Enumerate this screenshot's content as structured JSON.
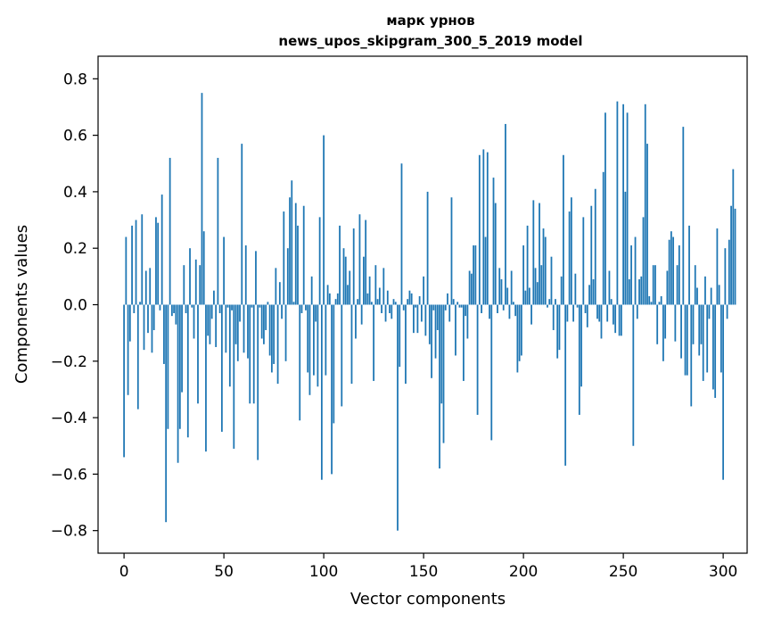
{
  "chart_data": {
    "type": "bar",
    "title_line1": "марк урнов",
    "title_line2": "news_upos_skipgram_300_5_2019 model",
    "xlabel": "Vector components",
    "ylabel": "Components values",
    "xlim": [
      -13,
      312
    ],
    "ylim": [
      -0.88,
      0.88
    ],
    "xticks": [
      0,
      50,
      100,
      150,
      200,
      250,
      300
    ],
    "yticks": [
      -0.8,
      -0.6,
      -0.4,
      -0.2,
      0.0,
      0.2,
      0.4,
      0.6,
      0.8
    ],
    "ytick_labels": [
      "−0.8",
      "−0.6",
      "−0.4",
      "−0.2",
      "0.0",
      "0.2",
      "0.4",
      "0.6",
      "0.8"
    ],
    "bar_color": "#1f77b4",
    "values": [
      -0.54,
      0.24,
      -0.32,
      -0.13,
      0.28,
      -0.03,
      0.3,
      -0.37,
      0.01,
      0.32,
      -0.16,
      0.12,
      -0.1,
      0.13,
      -0.17,
      -0.09,
      0.31,
      0.29,
      -0.02,
      0.39,
      -0.21,
      -0.77,
      -0.44,
      0.52,
      -0.04,
      -0.03,
      -0.07,
      -0.56,
      -0.44,
      -0.31,
      0.14,
      -0.03,
      -0.47,
      0.2,
      -0.01,
      -0.12,
      0.16,
      -0.35,
      0.14,
      0.75,
      0.26,
      -0.52,
      -0.11,
      -0.14,
      -0.05,
      0.05,
      -0.15,
      0.52,
      -0.03,
      -0.45,
      0.24,
      -0.17,
      -0.01,
      -0.29,
      -0.02,
      -0.51,
      -0.14,
      -0.2,
      -0.06,
      0.57,
      -0.17,
      0.21,
      -0.19,
      -0.35,
      -0.01,
      -0.35,
      0.19,
      -0.55,
      -0.01,
      -0.12,
      -0.14,
      -0.09,
      0.01,
      -0.18,
      -0.24,
      -0.21,
      0.13,
      -0.28,
      0.08,
      -0.05,
      0.33,
      -0.2,
      0.2,
      0.38,
      0.44,
      0.01,
      0.36,
      0.28,
      -0.41,
      -0.03,
      0.35,
      -0.02,
      -0.24,
      -0.32,
      0.1,
      -0.25,
      -0.06,
      -0.29,
      0.31,
      -0.62,
      0.6,
      -0.25,
      0.07,
      0.04,
      -0.6,
      -0.42,
      0.02,
      0.04,
      0.28,
      -0.36,
      0.2,
      0.17,
      0.07,
      0.12,
      -0.28,
      0.27,
      -0.12,
      0.02,
      0.32,
      -0.07,
      0.17,
      0.3,
      0.04,
      0.1,
      0.01,
      -0.27,
      0.14,
      0.02,
      0.06,
      -0.03,
      0.13,
      -0.06,
      0.05,
      -0.03,
      -0.05,
      0.02,
      0.01,
      -0.8,
      -0.22,
      0.5,
      -0.02,
      -0.28,
      0.02,
      0.05,
      0.04,
      -0.1,
      -0.01,
      -0.1,
      0.03,
      -0.06,
      0.1,
      -0.11,
      0.4,
      -0.14,
      -0.26,
      -0.02,
      -0.19,
      -0.09,
      -0.58,
      -0.35,
      -0.49,
      -0.02,
      0.04,
      -0.06,
      0.38,
      0.02,
      -0.18,
      0.01,
      -0.01,
      -0.01,
      -0.27,
      -0.04,
      -0.12,
      0.12,
      0.11,
      0.21,
      0.21,
      -0.39,
      0.53,
      -0.03,
      0.55,
      0.24,
      0.54,
      -0.05,
      -0.48,
      0.45,
      0.36,
      -0.03,
      0.13,
      0.09,
      -0.02,
      0.64,
      0.06,
      -0.05,
      0.12,
      0.01,
      -0.04,
      -0.24,
      -0.2,
      -0.18,
      0.21,
      0.05,
      0.28,
      0.06,
      -0.07,
      0.37,
      0.13,
      0.08,
      0.36,
      0.14,
      0.27,
      0.24,
      -0.01,
      0.02,
      0.17,
      -0.09,
      0.02,
      -0.19,
      -0.16,
      0.1,
      0.53,
      -0.57,
      -0.06,
      0.33,
      0.38,
      -0.06,
      0.11,
      -0.01,
      -0.39,
      -0.29,
      0.31,
      -0.03,
      -0.08,
      0.07,
      0.35,
      0.09,
      0.41,
      -0.05,
      -0.06,
      -0.12,
      0.47,
      0.68,
      -0.06,
      0.12,
      0.02,
      -0.07,
      -0.1,
      0.72,
      -0.11,
      -0.11,
      0.71,
      0.4,
      0.68,
      0.09,
      0.21,
      -0.5,
      0.24,
      -0.05,
      0.09,
      0.1,
      0.31,
      0.71,
      0.57,
      0.03,
      0.01,
      0.14,
      0.14,
      -0.14,
      0.01,
      0.03,
      -0.2,
      -0.12,
      0.12,
      0.23,
      0.26,
      0.24,
      -0.13,
      0.14,
      0.21,
      -0.19,
      0.63,
      -0.25,
      -0.25,
      0.28,
      -0.36,
      -0.14,
      0.14,
      0.06,
      -0.18,
      -0.14,
      -0.27,
      0.1,
      -0.24,
      -0.05,
      0.06,
      -0.3,
      -0.33,
      0.27,
      0.07,
      -0.24,
      -0.62,
      0.2,
      -0.05,
      0.23,
      0.35,
      0.48,
      0.34
    ]
  }
}
